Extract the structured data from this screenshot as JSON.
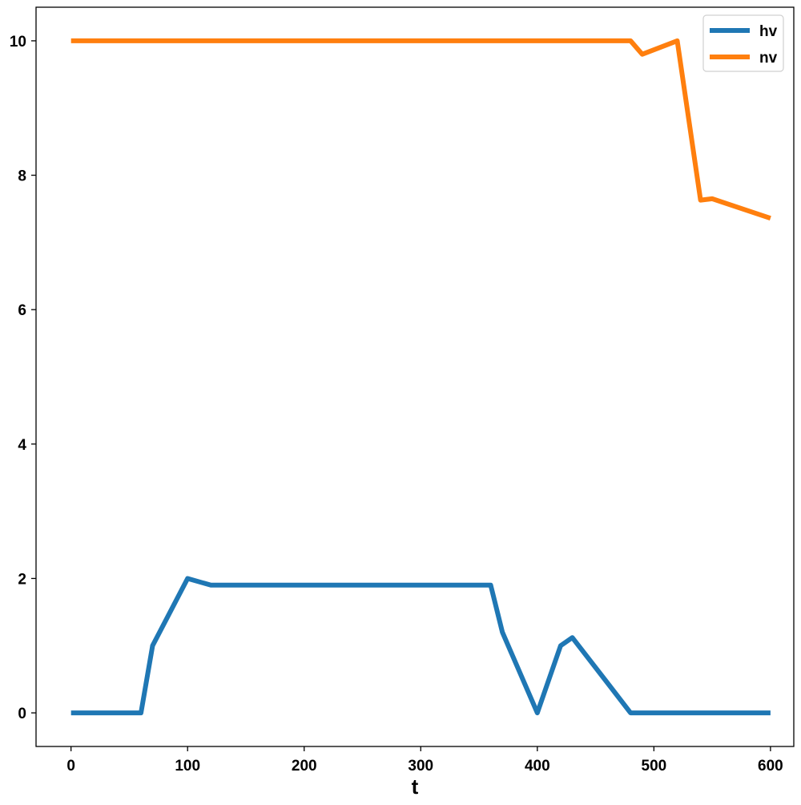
{
  "chart_data": {
    "type": "line",
    "title": "",
    "xlabel": "t",
    "ylabel": "",
    "xlim": [
      -30,
      620
    ],
    "ylim": [
      -0.5,
      10.5
    ],
    "xticks": [
      0,
      100,
      200,
      300,
      400,
      500,
      600
    ],
    "yticks": [
      0,
      2,
      4,
      6,
      8,
      10
    ],
    "grid": false,
    "legend_position": "top-right",
    "series": [
      {
        "name": "hv",
        "color": "#1f77b4",
        "x": [
          0,
          60,
          70,
          100,
          120,
          360,
          370,
          400,
          420,
          430,
          460,
          480,
          600
        ],
        "y": [
          0,
          0,
          1.0,
          2.0,
          1.9,
          1.9,
          1.2,
          0,
          1.0,
          1.12,
          0.45,
          0,
          0
        ]
      },
      {
        "name": "nv",
        "color": "#ff7f0e",
        "x": [
          0,
          480,
          490,
          520,
          540,
          550,
          600
        ],
        "y": [
          10,
          10,
          9.8,
          10,
          7.63,
          7.65,
          7.36
        ]
      }
    ]
  }
}
